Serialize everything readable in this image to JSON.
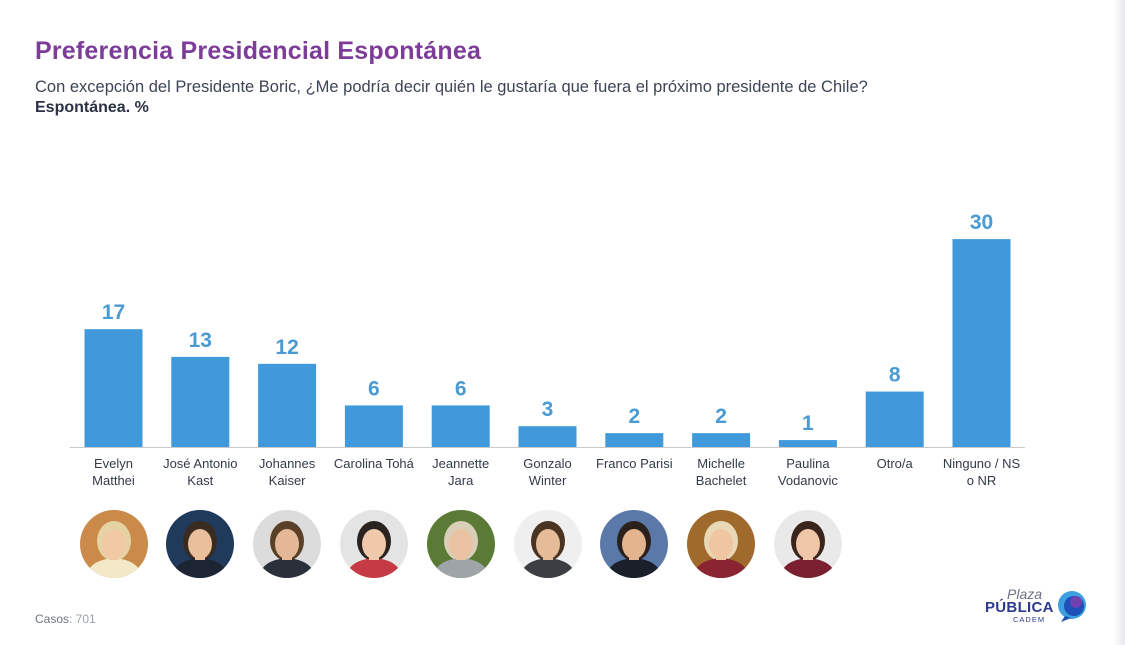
{
  "header": {
    "title": "Preferencia Presidencial Espontánea",
    "subtitle": "Con excepción del Presidente Boric, ¿Me podría decir quién le gustaría que fuera el próximo presidente de Chile?",
    "subtitle2": "Espontánea. %"
  },
  "chart_data": {
    "type": "bar",
    "categories": [
      [
        "Evelyn",
        "Matthei"
      ],
      [
        "José Antonio",
        "Kast"
      ],
      [
        "Johannes",
        "Kaiser"
      ],
      [
        "Carolina Tohá"
      ],
      [
        "Jeannette",
        "Jara"
      ],
      [
        "Gonzalo",
        "Winter"
      ],
      [
        "Franco Parisi"
      ],
      [
        "Michelle",
        "Bachelet"
      ],
      [
        "Paulina",
        "Vodanovic"
      ],
      [
        "Otro/a"
      ],
      [
        "Ninguno / NS",
        "o NR"
      ]
    ],
    "values": [
      17,
      13,
      12,
      6,
      6,
      3,
      2,
      2,
      1,
      8,
      30
    ],
    "bar_color": "#3f99db",
    "value_color": "#4a9ad3",
    "grid": false,
    "legend": false
  },
  "photos": [
    {
      "name": "Evelyn Matthei",
      "icon": "portrait-icon",
      "bg": "#c98a4a",
      "skin": "#f1c9a5",
      "hair": "#e6d3a3",
      "shirt": "#f3e9c9"
    },
    {
      "name": "José Antonio Kast",
      "icon": "portrait-icon",
      "bg": "#1f3a5a",
      "skin": "#e9bf9c",
      "hair": "#3a2a20",
      "shirt": "#1d2433"
    },
    {
      "name": "Johannes Kaiser",
      "icon": "portrait-icon",
      "bg": "#dcdcdc",
      "skin": "#e4b896",
      "hair": "#5a4028",
      "shirt": "#2b2f3a"
    },
    {
      "name": "Carolina Tohá",
      "icon": "portrait-icon",
      "bg": "#e4e4e4",
      "skin": "#f0c8aa",
      "hair": "#2a2320",
      "shirt": "#c63a45"
    },
    {
      "name": "Jeannette Jara",
      "icon": "portrait-icon",
      "bg": "#5a7a35",
      "skin": "#eac3a2",
      "hair": "#d9cfb8",
      "shirt": "#9fa4a8"
    },
    {
      "name": "Gonzalo Winter",
      "icon": "portrait-icon",
      "bg": "#efefef",
      "skin": "#e6bb98",
      "hair": "#4b3322",
      "shirt": "#3c3e44"
    },
    {
      "name": "Franco Parisi",
      "icon": "portrait-icon",
      "bg": "#5b79a8",
      "skin": "#e3b48e",
      "hair": "#2b211c",
      "shirt": "#1a1f2a"
    },
    {
      "name": "Michelle Bachelet",
      "icon": "portrait-icon",
      "bg": "#a06a2d",
      "skin": "#f0c6a2",
      "hair": "#e8d8b6",
      "shirt": "#8a2430"
    },
    {
      "name": "Paulina Vodanovic",
      "icon": "portrait-icon",
      "bg": "#e9e9e9",
      "skin": "#efc7a8",
      "hair": "#3a241b",
      "shirt": "#7a2030"
    }
  ],
  "footer": {
    "casos_label": "Casos",
    "casos_value": ": 701",
    "logo_plaza": "Plaza",
    "logo_publica": "PÚBLICA",
    "logo_cadem": "CADEM"
  }
}
